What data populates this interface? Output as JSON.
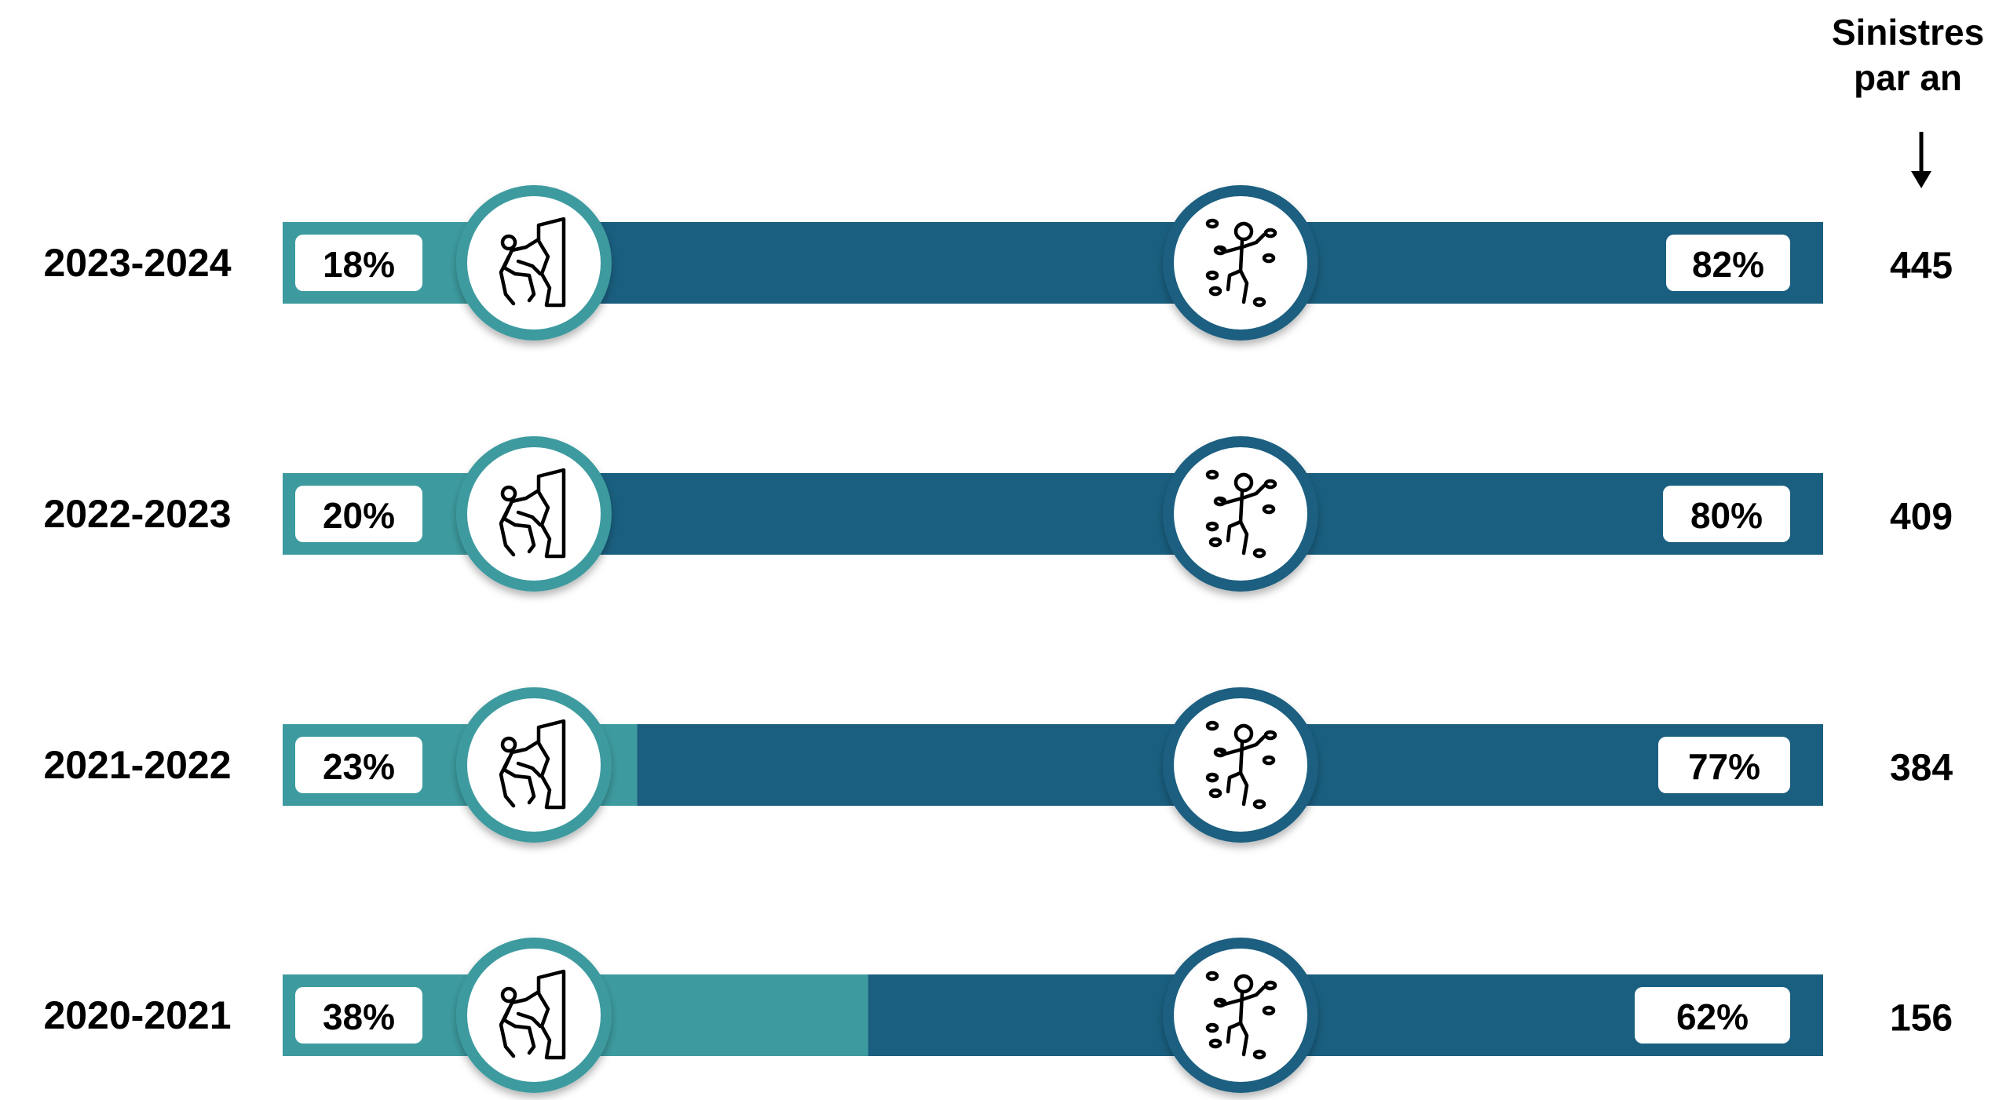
{
  "header": {
    "line1": "Sinistres",
    "line2": "par an"
  },
  "colors": {
    "segment_left": "#3d9b9f",
    "segment_right": "#1a5f80",
    "label_box": "#ffffff",
    "text": "#000000"
  },
  "icons": {
    "left_segment": "wall-climber-icon",
    "right_segment": "rock-climber-icon",
    "header_arrow": "arrow-down-icon"
  },
  "chart_data": {
    "type": "bar",
    "stacked": true,
    "orientation": "horizontal",
    "value_axis": "percent",
    "xlim": [
      0,
      100
    ],
    "categories": [
      "2023-2024",
      "2022-2023",
      "2021-2022",
      "2020-2021"
    ],
    "series": [
      {
        "values": [
          18,
          20,
          23,
          38
        ],
        "labels": [
          "18%",
          "20%",
          "23%",
          "38%"
        ]
      },
      {
        "values": [
          82,
          80,
          77,
          62
        ],
        "labels": [
          "82%",
          "80%",
          "77%",
          "62%"
        ]
      }
    ],
    "totals_column": {
      "title": "Sinistres par an",
      "values": [
        445,
        409,
        384,
        156
      ],
      "labels": [
        "445",
        "409",
        "384",
        "156"
      ]
    },
    "legend": "none",
    "grid": false
  }
}
